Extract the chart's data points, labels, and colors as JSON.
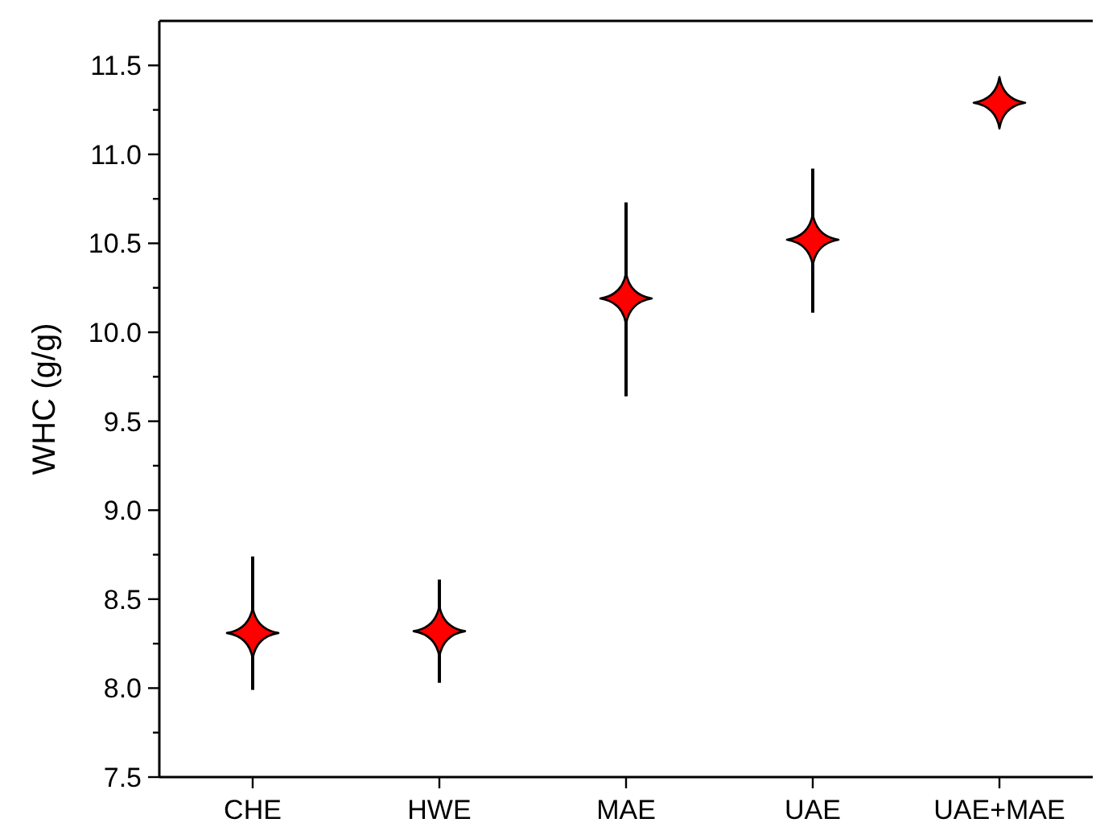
{
  "chart_data": {
    "type": "scatter",
    "ylabel": "WHC (g/g)",
    "marker": "star",
    "categories": [
      "CHE",
      "HWE",
      "MAE",
      "UAE",
      "UAE+MAE"
    ],
    "series": [
      {
        "color": "#ff0000",
        "values": [
          8.31,
          8.32,
          10.19,
          10.52,
          11.29
        ],
        "errors": [
          [
            7.99,
            8.74
          ],
          [
            8.03,
            8.61
          ],
          [
            9.64,
            10.73
          ],
          [
            10.11,
            10.92
          ],
          [
            11.19,
            11.39
          ]
        ]
      }
    ],
    "ylim": [
      7.5,
      11.75
    ],
    "yticks": [
      7.5,
      {
        "value": 7.75,
        "label": null
      },
      {
        "value": 8,
        "label": "8.0"
      },
      {
        "value": 8.25,
        "label": null
      },
      8.5,
      {
        "value": 8.75,
        "label": null
      },
      {
        "value": 9,
        "label": "9.0"
      },
      {
        "value": 9.25,
        "label": null
      },
      9.5,
      {
        "value": 9.75,
        "label": null
      },
      {
        "value": 10,
        "label": "10.0"
      },
      {
        "value": 10.25,
        "label": null
      },
      10.5,
      {
        "value": 10.75,
        "label": null
      },
      {
        "value": 11,
        "label": "11.0"
      },
      {
        "value": 11.25,
        "label": null
      },
      11.5
    ],
    "grid": false
  }
}
